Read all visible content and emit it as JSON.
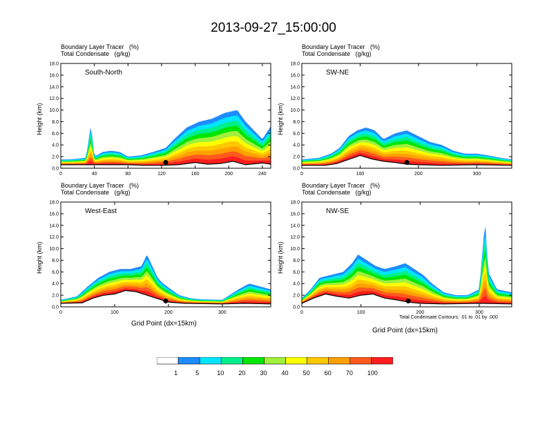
{
  "figure_title": "2013-09-27_15:00:00",
  "panel_title_line1": "Boundary Layer Tracer   (%)",
  "panel_title_line2": "Total Condensate   (g/kg)",
  "y_axis_label": "Height (km)",
  "x_axis_label": "Grid Point (dx=15km)",
  "contour_note": "Total Condensate Contours: .01 to .01 by .000",
  "colors": {
    "c0": "#ffffff",
    "c1": "#1e8cff",
    "c5": "#00e6ff",
    "c10": "#00f08c",
    "c20": "#00e600",
    "c30": "#a0f03c",
    "c40": "#ffff00",
    "c50": "#ffc800",
    "c60": "#ffa000",
    "c70": "#ff5a1e",
    "c100": "#ff1e1e"
  },
  "colorbar_labels": [
    "1",
    "5",
    "10",
    "20",
    "30",
    "40",
    "50",
    "60",
    "70",
    "100"
  ],
  "chart_data": [
    {
      "type": "heatmap",
      "name": "South-North",
      "xlim": [
        0,
        250
      ],
      "ylim": [
        0,
        18
      ],
      "xticks": [
        "0",
        "40",
        "80",
        "120",
        "160",
        "200",
        "240"
      ],
      "yticks": [
        "0.0",
        "2.0",
        "4.0",
        "6.0",
        "8.0",
        "10.0",
        "12.0",
        "14.0",
        "16.0",
        "18.0"
      ],
      "marker_x": 125,
      "top_km": [
        [
          0,
          1.5
        ],
        [
          10,
          1.5
        ],
        [
          30,
          1.8
        ],
        [
          36,
          7.5
        ],
        [
          40,
          2
        ],
        [
          50,
          2.8
        ],
        [
          60,
          3
        ],
        [
          70,
          2.8
        ],
        [
          80,
          2
        ],
        [
          95,
          2.2
        ],
        [
          110,
          2.8
        ],
        [
          125,
          3.5
        ],
        [
          135,
          5
        ],
        [
          150,
          7
        ],
        [
          165,
          8
        ],
        [
          180,
          8.5
        ],
        [
          195,
          9.5
        ],
        [
          210,
          10
        ],
        [
          220,
          8
        ],
        [
          230,
          6.5
        ],
        [
          240,
          5
        ],
        [
          250,
          7.2
        ]
      ],
      "terrain_km": [
        [
          0,
          0.6
        ],
        [
          40,
          0.6
        ],
        [
          60,
          0.6
        ],
        [
          80,
          0.6
        ],
        [
          100,
          0.5
        ],
        [
          120,
          0.5
        ],
        [
          140,
          0.6
        ],
        [
          160,
          1.0
        ],
        [
          175,
          0.7
        ],
        [
          190,
          0.8
        ],
        [
          205,
          1.2
        ],
        [
          220,
          0.6
        ],
        [
          240,
          0.9
        ],
        [
          250,
          0.7
        ]
      ]
    },
    {
      "type": "heatmap",
      "name": "SW-NE",
      "xlim": [
        0,
        360
      ],
      "ylim": [
        0,
        18
      ],
      "xticks": [
        "0",
        "100",
        "200",
        "300"
      ],
      "yticks": [
        "0.0",
        "2.0",
        "4.0",
        "6.0",
        "8.0",
        "10.0",
        "12.0",
        "14.0",
        "16.0",
        "18.0"
      ],
      "marker_x": 180,
      "top_km": [
        [
          0,
          1.5
        ],
        [
          30,
          1.8
        ],
        [
          50,
          2.5
        ],
        [
          65,
          3.5
        ],
        [
          80,
          5.5
        ],
        [
          95,
          6.5
        ],
        [
          110,
          7
        ],
        [
          125,
          6.5
        ],
        [
          140,
          5
        ],
        [
          160,
          6
        ],
        [
          180,
          6.5
        ],
        [
          200,
          5.5
        ],
        [
          220,
          4.5
        ],
        [
          240,
          4
        ],
        [
          260,
          3
        ],
        [
          280,
          2.5
        ],
        [
          300,
          2.5
        ],
        [
          320,
          2.2
        ],
        [
          340,
          1.8
        ],
        [
          360,
          1.5
        ]
      ],
      "terrain_km": [
        [
          0,
          0.5
        ],
        [
          40,
          0.5
        ],
        [
          60,
          0.8
        ],
        [
          80,
          1.5
        ],
        [
          100,
          2.2
        ],
        [
          120,
          1.6
        ],
        [
          140,
          1.2
        ],
        [
          160,
          1.0
        ],
        [
          180,
          0.7
        ],
        [
          200,
          0.6
        ],
        [
          240,
          0.5
        ],
        [
          300,
          0.6
        ],
        [
          360,
          0.5
        ]
      ]
    },
    {
      "type": "heatmap",
      "name": "West-East",
      "xlim": [
        0,
        390
      ],
      "ylim": [
        0,
        18
      ],
      "xticks": [
        "0",
        "100",
        "200",
        "300"
      ],
      "yticks": [
        "0.0",
        "2.0",
        "4.0",
        "6.0",
        "8.0",
        "10.0",
        "12.0",
        "14.0",
        "16.0",
        "18.0"
      ],
      "marker_x": 195,
      "top_km": [
        [
          0,
          1.2
        ],
        [
          30,
          1.8
        ],
        [
          50,
          3.5
        ],
        [
          70,
          5
        ],
        [
          90,
          6
        ],
        [
          110,
          6.5
        ],
        [
          130,
          6.5
        ],
        [
          150,
          7
        ],
        [
          160,
          9
        ],
        [
          170,
          7
        ],
        [
          180,
          5
        ],
        [
          190,
          4
        ],
        [
          205,
          3
        ],
        [
          220,
          2
        ],
        [
          240,
          1.5
        ],
        [
          260,
          1.3
        ],
        [
          300,
          1.2
        ],
        [
          330,
          3
        ],
        [
          350,
          4
        ],
        [
          370,
          3.5
        ],
        [
          390,
          3
        ]
      ],
      "terrain_km": [
        [
          0,
          0.6
        ],
        [
          40,
          0.7
        ],
        [
          60,
          1.5
        ],
        [
          80,
          2.0
        ],
        [
          100,
          2.2
        ],
        [
          120,
          2.8
        ],
        [
          140,
          2.6
        ],
        [
          160,
          2.0
        ],
        [
          180,
          1.4
        ],
        [
          200,
          0.8
        ],
        [
          230,
          0.6
        ],
        [
          300,
          0.5
        ],
        [
          340,
          0.6
        ],
        [
          390,
          0.5
        ]
      ]
    },
    {
      "type": "heatmap",
      "name": "NW-SE",
      "xlim": [
        0,
        355
      ],
      "ylim": [
        0,
        18
      ],
      "xticks": [
        "0",
        "100",
        "200",
        "300"
      ],
      "yticks": [
        "0.0",
        "2.0",
        "4.0",
        "6.0",
        "8.0",
        "10.0",
        "12.0",
        "14.0",
        "16.0",
        "18.0"
      ],
      "marker_x": 180,
      "top_km": [
        [
          0,
          1.5
        ],
        [
          15,
          3
        ],
        [
          30,
          5
        ],
        [
          50,
          5.5
        ],
        [
          70,
          6
        ],
        [
          85,
          7.5
        ],
        [
          95,
          9
        ],
        [
          110,
          8
        ],
        [
          125,
          7
        ],
        [
          140,
          6.5
        ],
        [
          160,
          7
        ],
        [
          175,
          7.5
        ],
        [
          190,
          6.5
        ],
        [
          205,
          5.5
        ],
        [
          220,
          4
        ],
        [
          240,
          2.5
        ],
        [
          260,
          2
        ],
        [
          280,
          2
        ],
        [
          300,
          3
        ],
        [
          310,
          15
        ],
        [
          315,
          6
        ],
        [
          330,
          3
        ],
        [
          355,
          2.5
        ]
      ],
      "terrain_km": [
        [
          0,
          0.6
        ],
        [
          20,
          1.5
        ],
        [
          40,
          2.2
        ],
        [
          60,
          1.8
        ],
        [
          80,
          1.5
        ],
        [
          100,
          2.0
        ],
        [
          120,
          2.2
        ],
        [
          140,
          1.5
        ],
        [
          160,
          1.2
        ],
        [
          180,
          0.8
        ],
        [
          200,
          0.6
        ],
        [
          240,
          0.5
        ],
        [
          300,
          0.6
        ],
        [
          355,
          0.5
        ]
      ]
    }
  ]
}
